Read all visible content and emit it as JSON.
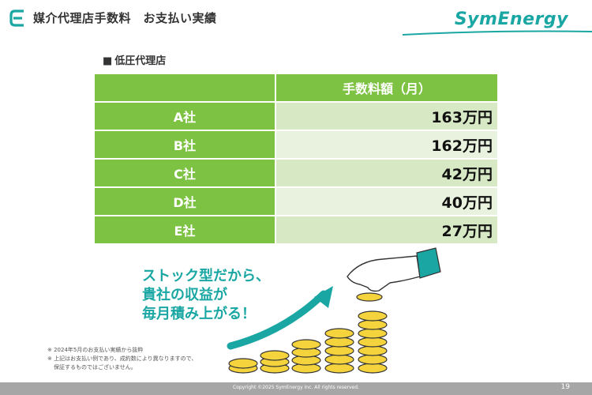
{
  "header": {
    "title": "媒介代理店手数料　お支払い実績",
    "brand": "SymEnergy"
  },
  "section": {
    "label": "低圧代理店"
  },
  "table": {
    "header_fee": "手数料額（月）",
    "rows": [
      {
        "name": "A社",
        "fee": "163万円"
      },
      {
        "name": "B社",
        "fee": "162万円"
      },
      {
        "name": "C社",
        "fee": "42万円"
      },
      {
        "name": "D社",
        "fee": "40万円"
      },
      {
        "name": "E社",
        "fee": "27万円"
      }
    ]
  },
  "slogan": {
    "line1": "ストック型だから、",
    "line2": "貴社の収益が",
    "line3": "毎月積み上がる！"
  },
  "notes": {
    "line1": "※ 2024年5月のお支払い実績から抜粋",
    "line2": "※ 上記はお支払い例であり、成約数により異なりますので、",
    "line3": "保証するものではございません。"
  },
  "footer": {
    "copyright": "Copyright ©2025 SymEnergy Inc. All rights reserved.",
    "page": "19"
  },
  "colors": {
    "accent": "#1aa7a3",
    "table_green": "#7dc242",
    "row_light": "#d7e8c4",
    "row_lighter": "#e9f2de",
    "coin": "#f5d33c"
  }
}
